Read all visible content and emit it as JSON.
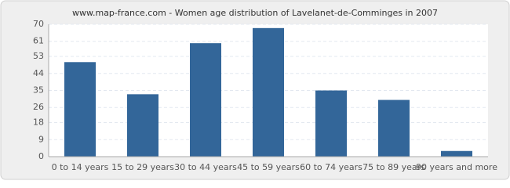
{
  "chart_data": {
    "type": "bar",
    "title": "www.map-france.com - Women age distribution of Lavelanet-de-Comminges in 2007",
    "categories": [
      "0 to 14 years",
      "15 to 29 years",
      "30 to 44 years",
      "45 to 59 years",
      "60 to 74 years",
      "75 to 89 years",
      "90 years and more"
    ],
    "values": [
      50,
      33,
      60,
      68,
      35,
      30,
      3
    ],
    "color": "#336699",
    "ylim": [
      0,
      70
    ],
    "yticks": [
      0,
      9,
      18,
      26,
      35,
      44,
      53,
      61,
      70
    ],
    "grid": true
  }
}
